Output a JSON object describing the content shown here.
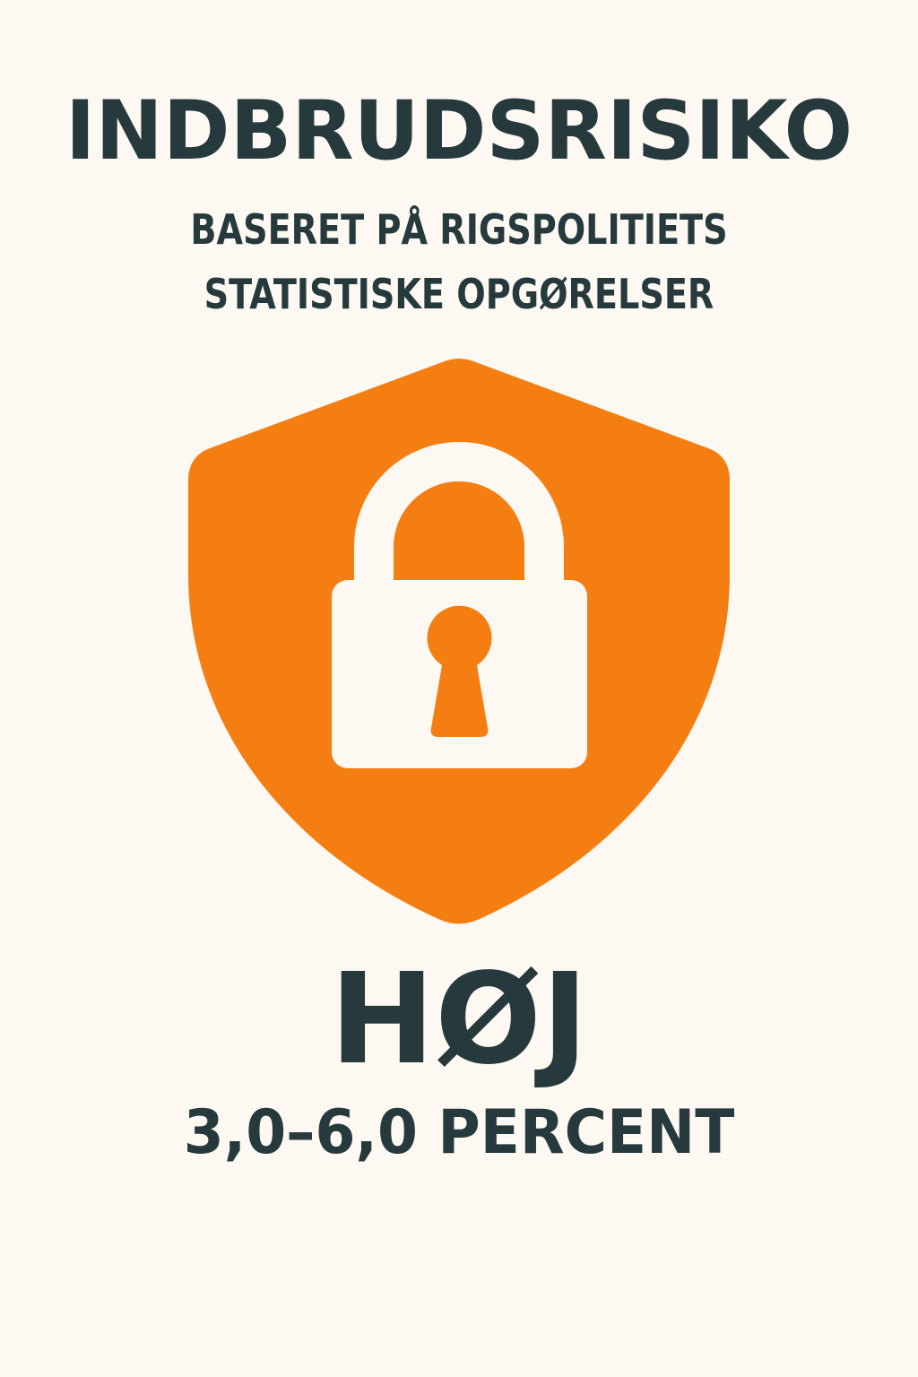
{
  "header": {
    "title": "INDBRUDSRISIKO",
    "subtitle_line1": "BASERET PÅ RIGSPOLITIETS",
    "subtitle_line2": "STATISTISKE OPGØRELSER"
  },
  "emblem": {
    "shape": "shield-icon",
    "symbol": "padlock-icon",
    "shield_color": "#f47e12",
    "symbol_color": "#fdf8f2"
  },
  "risk": {
    "level": "HØJ",
    "range": "3,0–6,0 PERCENT"
  },
  "colors": {
    "background": "#fdf8f2",
    "text": "#263a3d",
    "accent": "#f47e12"
  }
}
